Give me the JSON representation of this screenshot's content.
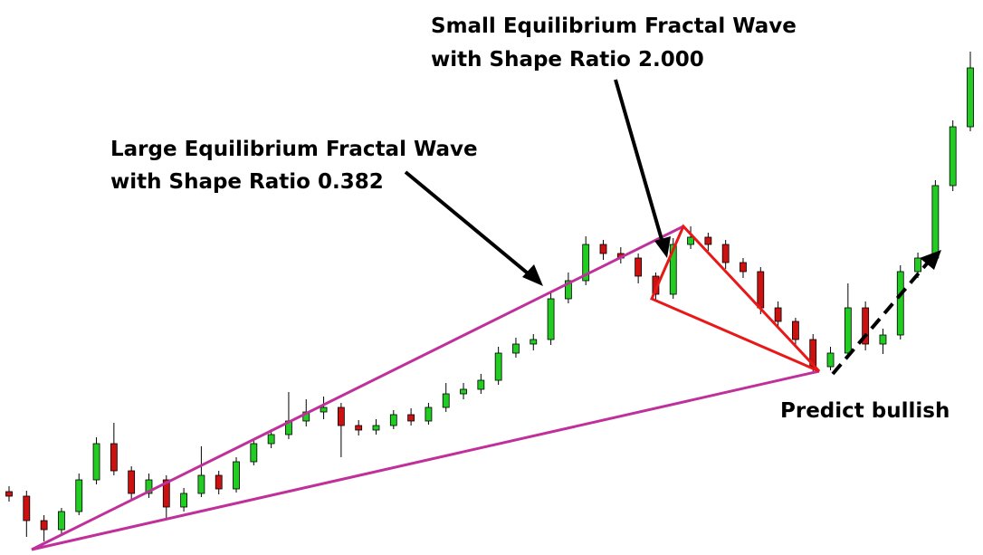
{
  "chart_data": {
    "type": "candlestick",
    "annotations": [
      "Large Equilibrium Fractal Wave",
      "with Shape Ratio 0.382",
      "Small Equilibrium Fractal Wave",
      "with Shape Ratio 2.000",
      "Predict bullish"
    ],
    "ylim": [
      0,
      613
    ],
    "up_color": "#22cc22",
    "down_color": "#cc1111",
    "open": [
      70,
      65,
      38,
      28,
      48,
      83,
      123,
      93,
      68,
      83,
      53,
      68,
      88,
      73,
      103,
      123,
      133,
      148,
      158,
      163,
      143,
      138,
      143,
      155,
      148,
      163,
      178,
      183,
      193,
      223,
      233,
      238,
      283,
      303,
      343,
      333,
      328,
      308,
      288,
      343,
      351,
      343,
      323,
      313,
      273,
      258,
      238,
      208,
      223,
      273,
      233,
      243,
      313,
      328,
      408,
      473
    ],
    "high": [
      76,
      71,
      44,
      52,
      90,
      130,
      146,
      98,
      90,
      88,
      74,
      120,
      93,
      108,
      129,
      139,
      180,
      172,
      175,
      168,
      149,
      150,
      160,
      162,
      168,
      190,
      190,
      200,
      230,
      240,
      244,
      290,
      312,
      352,
      348,
      340,
      333,
      312,
      350,
      363,
      356,
      348,
      328,
      318,
      280,
      262,
      244,
      230,
      300,
      280,
      250,
      320,
      334,
      414,
      480,
      556
    ],
    "low": [
      59,
      20,
      15,
      22,
      44,
      78,
      88,
      62,
      63,
      40,
      48,
      64,
      67,
      69,
      99,
      118,
      128,
      142,
      150,
      108,
      132,
      133,
      139,
      143,
      144,
      158,
      172,
      178,
      188,
      218,
      226,
      232,
      278,
      298,
      326,
      322,
      300,
      280,
      283,
      338,
      336,
      316,
      306,
      266,
      250,
      230,
      203,
      204,
      218,
      226,
      222,
      238,
      306,
      322,
      402,
      468
    ],
    "close": [
      65,
      38,
      28,
      48,
      83,
      123,
      93,
      68,
      83,
      53,
      68,
      88,
      73,
      103,
      123,
      133,
      148,
      158,
      163,
      143,
      138,
      143,
      155,
      148,
      163,
      178,
      183,
      193,
      223,
      233,
      238,
      283,
      303,
      343,
      333,
      328,
      308,
      288,
      343,
      351,
      343,
      323,
      313,
      273,
      258,
      238,
      208,
      223,
      273,
      233,
      243,
      313,
      328,
      408,
      473,
      538
    ]
  }
}
